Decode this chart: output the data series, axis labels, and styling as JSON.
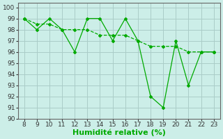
{
  "x": [
    8,
    9,
    10,
    11,
    12,
    13,
    14,
    15,
    16,
    17,
    18,
    19,
    20,
    21,
    22,
    23
  ],
  "y_jagged": [
    99,
    98,
    99,
    98,
    96,
    99,
    99,
    97,
    99,
    97,
    92,
    91,
    97,
    93,
    96,
    96
  ],
  "y_trend": [
    99,
    98.5,
    98.5,
    98,
    98,
    98,
    97.5,
    97.5,
    97.5,
    97,
    96.5,
    96.5,
    96.5,
    96,
    96,
    96
  ],
  "xlim": [
    7.5,
    23.5
  ],
  "ylim": [
    90,
    100.4
  ],
  "yticks": [
    90,
    91,
    92,
    93,
    94,
    95,
    96,
    97,
    98,
    99,
    100
  ],
  "xticks": [
    8,
    9,
    10,
    11,
    12,
    13,
    14,
    15,
    16,
    17,
    18,
    19,
    20,
    21,
    22,
    23
  ],
  "xlabel": "Humidité relative (%)",
  "line_color": "#00aa00",
  "bg_color": "#cceee8",
  "grid_color": "#aaccc8",
  "tick_fontsize": 6.5,
  "xlabel_fontsize": 8
}
